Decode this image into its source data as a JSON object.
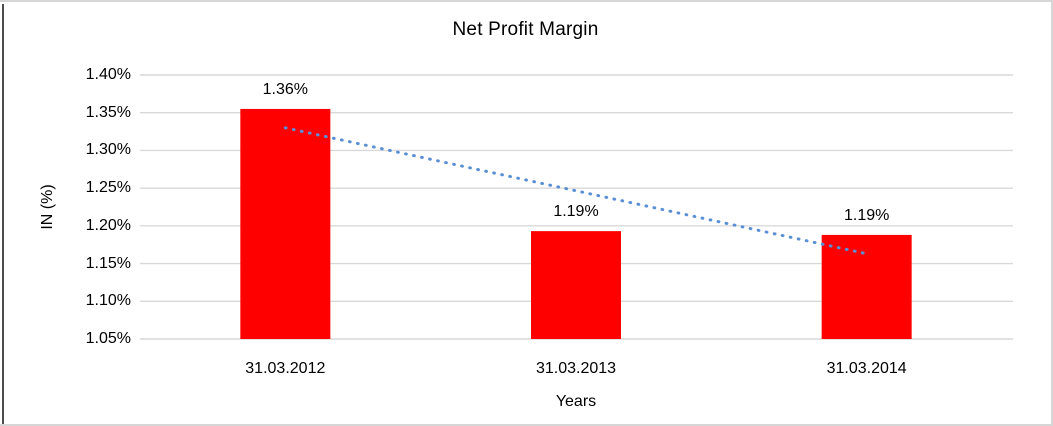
{
  "window": {
    "background": "#FFFFFF",
    "border_color": "#D6D6D6",
    "left_edge_color": "#4D4D4D"
  },
  "chart_data": {
    "type": "bar",
    "title": "Net Profit Margin",
    "xlabel": "Years",
    "ylabel": "IN (%)",
    "categories": [
      "31.03.2012",
      "31.03.2013",
      "31.03.2014"
    ],
    "values": [
      1.355,
      1.193,
      1.188
    ],
    "data_labels": [
      "1.36%",
      "1.19%",
      "1.19%"
    ],
    "ylim": [
      1.05,
      1.4
    ],
    "yticks": [
      {
        "value": 1.4,
        "label": "1.40%"
      },
      {
        "value": 1.35,
        "label": "1.35%"
      },
      {
        "value": 1.3,
        "label": "1.30%"
      },
      {
        "value": 1.25,
        "label": "1.25%"
      },
      {
        "value": 1.2,
        "label": "1.20%"
      },
      {
        "value": 1.15,
        "label": "1.15%"
      },
      {
        "value": 1.1,
        "label": "1.10%"
      },
      {
        "value": 1.05,
        "label": "1.05%"
      }
    ],
    "grid": true,
    "legend": false,
    "bar_color": "#FF0000",
    "gridline_color": "#D9D9D9",
    "text_color": "#000000",
    "trendline": {
      "type": "linear",
      "style": "dotted",
      "color": "#5B8FD4",
      "start_category_index": 0,
      "end_category_index": 2,
      "start_value": 1.33,
      "end_value": 1.163
    }
  }
}
